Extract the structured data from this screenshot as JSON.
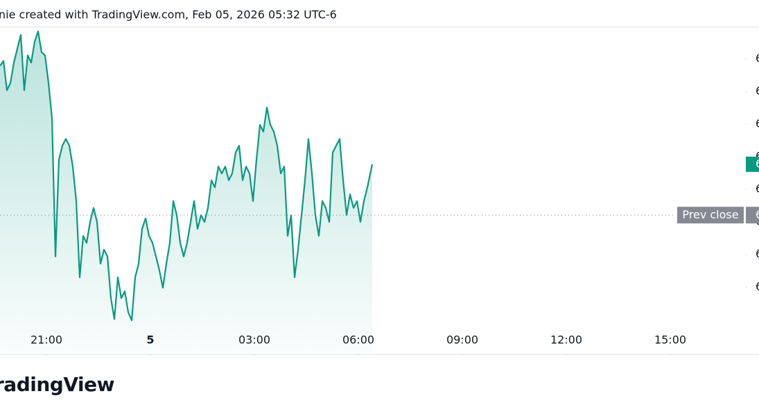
{
  "chart_data": {
    "type": "line",
    "title": "nie created with TradingView.com, Feb 05, 2026 05:32 UTC-6",
    "logo": "radingView",
    "color": "#089981",
    "x": [
      -4.34,
      -4.24,
      -4.14,
      -4.04,
      -3.94,
      -3.84,
      -3.74,
      -3.64,
      -3.54,
      -3.44,
      -3.34,
      -3.24,
      -3.14,
      -3.04,
      -2.94,
      -2.84,
      -2.74,
      -2.64,
      -2.54,
      -2.44,
      -2.34,
      -2.24,
      -2.14,
      -2.04,
      -1.94,
      -1.84,
      -1.74,
      -1.64,
      -1.54,
      -1.44,
      -1.34,
      -1.24,
      -1.14,
      -1.04,
      -0.94,
      -0.84,
      -0.74,
      -0.64,
      -0.54,
      -0.44,
      -0.34,
      -0.24,
      -0.14,
      -0.04,
      0.06,
      0.16,
      0.26,
      0.36,
      0.46,
      0.56,
      0.66,
      0.76,
      0.86,
      0.96,
      1.06,
      1.16,
      1.26,
      1.36,
      1.46,
      1.56,
      1.66,
      1.76,
      1.86,
      1.96,
      2.06,
      2.16,
      2.26,
      2.36,
      2.46,
      2.56,
      2.66,
      2.76,
      2.86,
      2.96,
      3.06,
      3.16,
      3.26,
      3.36,
      3.46,
      3.56,
      3.66,
      3.76,
      3.86,
      3.96,
      4.06,
      4.16,
      4.26,
      4.36,
      4.46,
      4.56,
      4.66,
      4.76,
      4.86,
      4.96,
      5.06,
      5.16,
      5.26,
      5.36,
      5.46,
      5.56,
      5.66,
      5.76,
      5.86,
      5.96,
      6.06,
      6.16,
      6.26,
      6.4
    ],
    "values": [
      6867.9,
      6869.4,
      6860.4,
      6862.6,
      6868.9,
      6873.2,
      6877.4,
      6860.4,
      6871.1,
      6868.9,
      6875.3,
      6878.5,
      6872.1,
      6871.1,
      6862.6,
      6851.9,
      6809.4,
      6839.1,
      6843.4,
      6845.5,
      6843.4,
      6837.0,
      6826.4,
      6803.0,
      6815.7,
      6813.6,
      6820.0,
      6824.3,
      6820.0,
      6807.2,
      6811.5,
      6809.4,
      6796.6,
      6790.2,
      6803.0,
      6796.6,
      6798.7,
      6792.3,
      6789.8,
      6803.0,
      6807.2,
      6817.9,
      6821.1,
      6815.7,
      6813.6,
      6809.4,
      6805.1,
      6799.8,
      6807.2,
      6813.6,
      6826.4,
      6822.1,
      6813.6,
      6809.4,
      6813.6,
      6820.0,
      6826.4,
      6817.9,
      6822.1,
      6820.0,
      6824.3,
      6832.8,
      6830.6,
      6837.0,
      6834.9,
      6837.0,
      6832.8,
      6834.9,
      6841.3,
      6843.4,
      6832.8,
      6837.0,
      6834.9,
      6826.4,
      6839.1,
      6849.8,
      6847.7,
      6855.1,
      6849.8,
      6847.7,
      6843.4,
      6834.9,
      6837.0,
      6815.7,
      6822.1,
      6803.0,
      6811.5,
      6822.1,
      6832.8,
      6845.5,
      6834.9,
      6822.1,
      6815.7,
      6826.4,
      6824.3,
      6820.0,
      6841.3,
      6843.4,
      6845.5,
      6832.8,
      6822.1,
      6828.5,
      6824.3,
      6826.4,
      6820.0,
      6826.4,
      6830.6,
      6837.7
    ],
    "xlim": [
      -4.34,
      17.16
    ],
    "xticks": [
      {
        "value": -3,
        "label": "21:00"
      },
      {
        "value": 0,
        "label": "5"
      },
      {
        "value": 3,
        "label": "03:00"
      },
      {
        "value": 6,
        "label": "06:00"
      },
      {
        "value": 9,
        "label": "09:00"
      },
      {
        "value": 12,
        "label": "12:00"
      },
      {
        "value": 15,
        "label": "15:00"
      }
    ],
    "ylim": [
      6779.6,
      6879.6
    ],
    "yticks": [
      {
        "value": 6800,
        "label": "6"
      },
      {
        "value": 6810,
        "label": "6"
      },
      {
        "value": 6820,
        "label": "6"
      },
      {
        "value": 6830,
        "label": "6"
      },
      {
        "value": 6840,
        "label": "6"
      },
      {
        "value": 6850,
        "label": "6"
      },
      {
        "value": 6860,
        "label": "6"
      },
      {
        "value": 6870,
        "label": "6"
      }
    ],
    "prev_close": {
      "value": 6822.1,
      "label": "Prev close",
      "price_label": "6"
    },
    "last_price": {
      "value": 6837.7,
      "label": "6"
    }
  }
}
